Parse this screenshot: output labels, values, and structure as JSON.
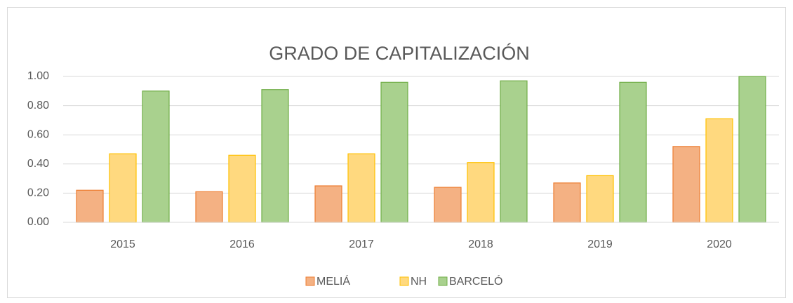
{
  "chart_data": {
    "type": "bar",
    "title": "GRADO DE CAPITALIZACIÓN",
    "categories": [
      "2015",
      "2016",
      "2017",
      "2018",
      "2019",
      "2020"
    ],
    "series": [
      {
        "name": "MELIÁ",
        "color": "#f4b183",
        "edge": "#ed7d31",
        "values": [
          0.22,
          0.21,
          0.25,
          0.24,
          0.27,
          0.52
        ]
      },
      {
        "name": "NH",
        "color": "#ffd97f",
        "edge": "#ffc000",
        "values": [
          0.47,
          0.46,
          0.47,
          0.41,
          0.32,
          0.71
        ]
      },
      {
        "name": "BARCELÓ",
        "color": "#a9d18e",
        "edge": "#70ad47",
        "values": [
          0.9,
          0.91,
          0.96,
          0.97,
          0.96,
          1.0
        ]
      }
    ],
    "ylim": [
      0,
      1
    ],
    "yticks": [
      {
        "value": 0,
        "label": "0.00"
      },
      {
        "value": 0.2,
        "label": "0.20"
      },
      {
        "value": 0.4,
        "label": "0.40"
      },
      {
        "value": 0.6,
        "label": "0.60"
      },
      {
        "value": 0.8,
        "label": "0.80"
      },
      {
        "value": 1,
        "label": "1.00"
      }
    ],
    "grid": true,
    "legend": "bottom"
  }
}
